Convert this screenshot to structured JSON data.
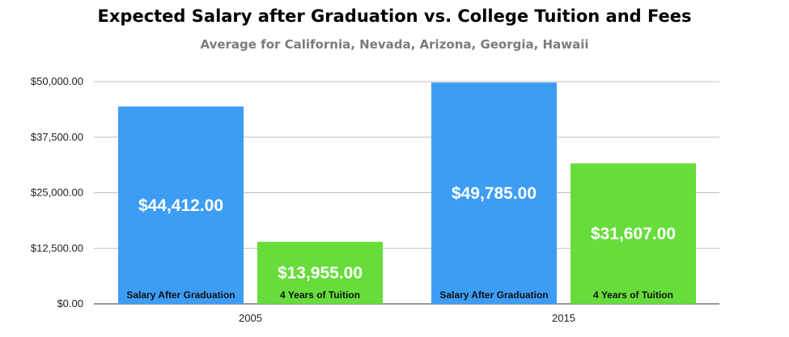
{
  "chart_data": {
    "type": "bar",
    "title": "Expected Salary after Graduation vs. College Tuition and Fees",
    "subtitle": "Average for California, Nevada, Arizona, Georgia, Hawaii",
    "categories": [
      "2005",
      "2015"
    ],
    "series": [
      {
        "name": "Salary After Graduation",
        "color": "#3d9df5",
        "values": [
          44412,
          49785
        ],
        "data_labels": [
          "$44,412.00",
          "$49,785.00"
        ]
      },
      {
        "name": "4 Years of Tuition",
        "color": "#66dd3a",
        "values": [
          13955,
          31607
        ],
        "data_labels": [
          "$13,955.00",
          "$31,607.00"
        ]
      }
    ],
    "ylim": [
      0,
      50000
    ],
    "y_ticks": [
      0,
      12500,
      25000,
      37500,
      50000
    ],
    "y_tick_labels": [
      "$0.00",
      "$12,500.00",
      "$25,000.00",
      "$37,500.00",
      "$50,000.00"
    ],
    "xlabel": "",
    "ylabel": "",
    "grid": true,
    "legend": "none (series names shown inside bars)"
  }
}
